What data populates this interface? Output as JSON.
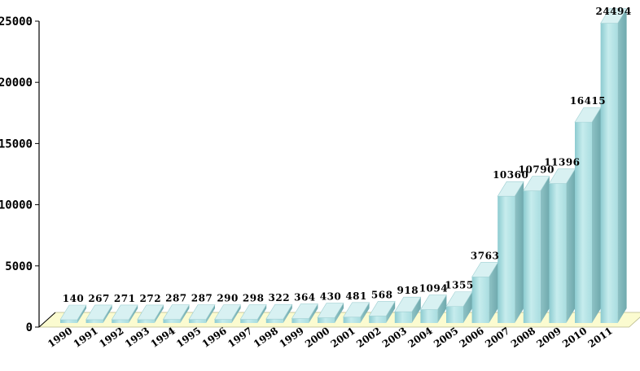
{
  "chart_data": {
    "type": "bar",
    "title": "",
    "xlabel": "",
    "ylabel": "",
    "categories": [
      "1990",
      "1991",
      "1992",
      "1993",
      "1994",
      "1995",
      "1996",
      "1997",
      "1998",
      "1999",
      "2000",
      "2001",
      "2002",
      "2003",
      "2004",
      "2005",
      "2006",
      "2007",
      "2008",
      "2009",
      "2010",
      "2011"
    ],
    "values": [
      140,
      267,
      271,
      272,
      287,
      287,
      290,
      298,
      322,
      364,
      430,
      481,
      568,
      918,
      1094,
      1355,
      3763,
      10360,
      10790,
      11396,
      16415,
      24494
    ],
    "data_labels": [
      "140",
      "267",
      "271",
      "272",
      "287",
      "287",
      "290",
      "298",
      "322",
      "364",
      "430",
      "481",
      "568",
      "918",
      "1094",
      "1355",
      "3763",
      "10360",
      "10790",
      "11396",
      "16415",
      "24494"
    ],
    "ylim": [
      0,
      25000
    ],
    "yticks": [
      "0",
      "5000",
      "10000",
      "15000",
      "20000",
      "25000"
    ],
    "grid": false,
    "legend": "none",
    "colors": {
      "bar_front": "#a9dde0",
      "bar_side": "#6fa9ad",
      "bar_top": "#d8f1f2",
      "floor": "#fbfbd0",
      "axis": "#000000"
    }
  }
}
